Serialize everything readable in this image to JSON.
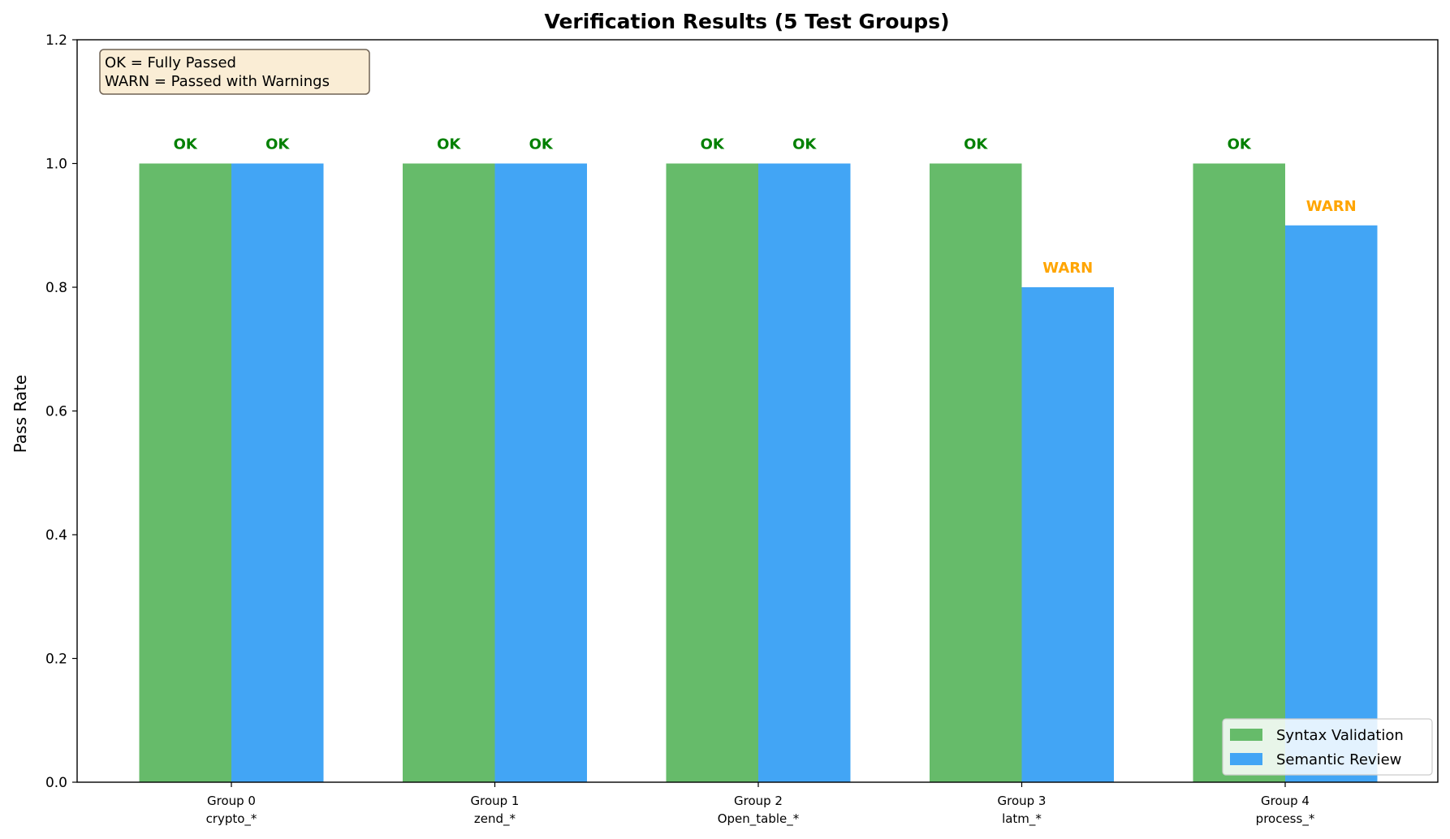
{
  "chart_data": {
    "type": "bar",
    "title": "Verification Results (5 Test Groups)",
    "xlabel": "",
    "ylabel": "Pass Rate",
    "ylim": [
      0,
      1.2
    ],
    "yticks": [
      "0.0",
      "0.2",
      "0.4",
      "0.6",
      "0.8",
      "1.0",
      "1.2"
    ],
    "categories": [
      {
        "group": "Group 0",
        "pattern": "crypto_*"
      },
      {
        "group": "Group 1",
        "pattern": "zend_*"
      },
      {
        "group": "Group 2",
        "pattern": "Open_table_*"
      },
      {
        "group": "Group 3",
        "pattern": "latm_*"
      },
      {
        "group": "Group 4",
        "pattern": "process_*"
      }
    ],
    "series": [
      {
        "name": "Syntax Validation",
        "color": "#66bb6a",
        "values": [
          1.0,
          1.0,
          1.0,
          1.0,
          1.0
        ],
        "labels": [
          "OK",
          "OK",
          "OK",
          "OK",
          "OK"
        ]
      },
      {
        "name": "Semantic Review",
        "color": "#42a5f5",
        "values": [
          1.0,
          1.0,
          1.0,
          0.8,
          0.9
        ],
        "labels": [
          "OK",
          "OK",
          "OK",
          "WARN",
          "WARN"
        ]
      }
    ],
    "status_colors": {
      "OK": "#008000",
      "WARN": "#ffa500"
    },
    "annotation_box": {
      "lines": [
        "OK = Fully Passed",
        "WARN = Passed with Warnings"
      ],
      "position": "top-left"
    },
    "legend_position": "lower-right",
    "grid": false
  }
}
